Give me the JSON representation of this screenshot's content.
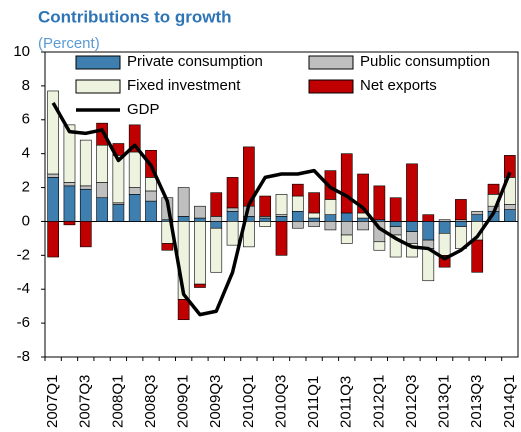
{
  "chart_data": {
    "type": "stacked-bar-line",
    "title": "Contributions to growth",
    "subtitle": "(Percent)",
    "categories": [
      "2007Q1",
      null,
      "2007Q3",
      null,
      "2008Q1",
      null,
      "2008Q3",
      null,
      "2009Q1",
      null,
      "2009Q3",
      null,
      "2010Q1",
      null,
      "2010Q3",
      null,
      "2011Q1",
      null,
      "2011Q3",
      null,
      "2012Q1",
      null,
      "2012Q3",
      null,
      "2013Q1",
      null,
      "2013Q3",
      null,
      "2014Q1"
    ],
    "series": [
      {
        "name": "Private consumption",
        "color": "#3f7fb0",
        "values": [
          2.6,
          2.1,
          1.9,
          1.4,
          1.0,
          1.6,
          1.2,
          0.1,
          0.3,
          0.2,
          -0.4,
          0.6,
          0.3,
          0.2,
          0.3,
          0.6,
          0.2,
          0.4,
          0.5,
          0.2,
          0.1,
          -0.3,
          -0.6,
          -1.1,
          -0.7,
          -0.3,
          0.4,
          0.6,
          0.7
        ]
      },
      {
        "name": "Public consumption",
        "color": "#bfbfbf",
        "values": [
          0.2,
          0.2,
          0.2,
          0.9,
          0.1,
          0.4,
          0.6,
          1.3,
          1.7,
          0.7,
          0.3,
          0.2,
          0.6,
          0.1,
          0.1,
          -0.4,
          -0.3,
          -0.5,
          -0.8,
          -0.5,
          -1.2,
          -0.5,
          -0.7,
          -0.5,
          0.1,
          0.1,
          0.2,
          0.3,
          0.3
        ]
      },
      {
        "name": "Fixed investment",
        "color": "#eef3e0",
        "values": [
          4.9,
          3.4,
          2.7,
          2.2,
          2.8,
          2.1,
          0.8,
          -1.3,
          -4.6,
          -3.7,
          -2.6,
          -1.4,
          -1.5,
          -0.3,
          1.2,
          0.9,
          0.3,
          0.9,
          -0.5,
          0.3,
          -0.5,
          -1.3,
          -0.8,
          -1.9,
          -1.3,
          -1.3,
          -1.1,
          0.7,
          1.6
        ]
      },
      {
        "name": "Net exports",
        "color": "#c00000",
        "values": [
          -2.1,
          -0.2,
          -1.5,
          1.3,
          0.7,
          1.6,
          1.6,
          -0.4,
          -1.2,
          -0.2,
          1.4,
          1.8,
          3.5,
          1.2,
          -2.0,
          0.7,
          1.2,
          1.7,
          3.5,
          2.3,
          2.0,
          1.4,
          3.4,
          0.4,
          -0.7,
          1.2,
          -1.9,
          0.6,
          1.3
        ]
      }
    ],
    "line": {
      "name": "GDP",
      "color": "#000000",
      "values": [
        7.0,
        5.3,
        5.2,
        5.4,
        3.6,
        4.5,
        3.3,
        1.2,
        -4.3,
        -5.5,
        -5.3,
        -3.0,
        1.0,
        2.6,
        2.8,
        2.8,
        3.0,
        2.0,
        1.5,
        0.8,
        -0.4,
        -1.0,
        -1.5,
        -1.6,
        -2.2,
        -1.7,
        -0.9,
        0.5,
        2.9
      ]
    },
    "ylim": [
      -8,
      10
    ],
    "yticks": [
      -8,
      -6,
      -4,
      -2,
      0,
      2,
      4,
      6,
      8,
      10
    ]
  }
}
